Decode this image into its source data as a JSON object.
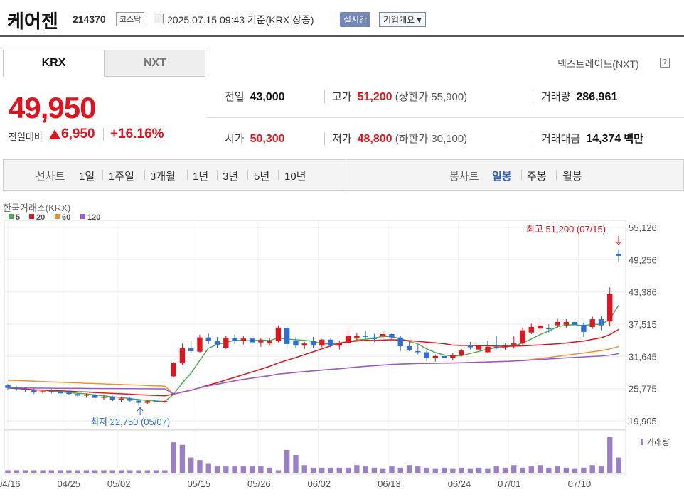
{
  "header": {
    "name": "케어젠",
    "code": "214370",
    "market": "코스닥",
    "time": "2025.07.15 09:43  기준(KRX 장중)",
    "live": "실시간",
    "corp": "기업개요 ▾"
  },
  "tabs": [
    "KRX",
    "NXT"
  ],
  "nexttrade": "넥스트레이드(NXT)",
  "price": {
    "current": "49,950",
    "change_label": "전일대비",
    "change": "6,950",
    "change_pct": "+16.16%"
  },
  "stats": {
    "prev_label": "전일",
    "prev": "43,000",
    "high_label": "고가",
    "high": "51,200",
    "upper_limit": "(상한가 55,900)",
    "volume_label": "거래량",
    "volume": "286,961",
    "open_label": "시가",
    "open": "50,300",
    "low_label": "저가",
    "low": "48,800",
    "lower_limit": "(하한가 30,100)",
    "amount_label": "거래대금",
    "amount": "14,374",
    "amount_unit": "백만"
  },
  "period": {
    "line_label": "선차트",
    "line_items": [
      "1일",
      "1주일",
      "3개월",
      "1년",
      "3년",
      "5년",
      "10년"
    ],
    "candle_label": "봉차트",
    "candle_items": [
      "일봉",
      "주봉",
      "월봉"
    ],
    "selected": "일봉"
  },
  "chart_data": {
    "type": "candlestick",
    "source": "한국거래소(KRX)",
    "legend": [
      {
        "name": "5",
        "color": "#4caf50"
      },
      {
        "name": "20",
        "color": "#e0141e"
      },
      {
        "name": "60",
        "color": "#f0922e"
      },
      {
        "name": "120",
        "color": "#9b59d0"
      }
    ],
    "y_ticks": [
      "55,126",
      "49,256",
      "43,386",
      "37,515",
      "31,645",
      "25,775",
      "19,905"
    ],
    "ylim": [
      19905,
      55126
    ],
    "x_ticks": [
      "04/16",
      "04/25",
      "05/02",
      "05/15",
      "05/26",
      "06/02",
      "06/13",
      "06/24",
      "07/01",
      "07/10"
    ],
    "high_annotation": "최고 51,200 (07/15)",
    "low_annotation": "최저 22,750 (05/07)",
    "volume_label": "거래량",
    "candles": [
      [
        26400,
        26600,
        25500,
        25900
      ],
      [
        25900,
        26200,
        25400,
        25700
      ],
      [
        25700,
        26000,
        25200,
        25500
      ],
      [
        25500,
        25800,
        24800,
        25100
      ],
      [
        25100,
        25600,
        24900,
        25300
      ],
      [
        25300,
        25700,
        24900,
        25100
      ],
      [
        25100,
        25500,
        24700,
        25000
      ],
      [
        25000,
        25300,
        24600,
        24800
      ],
      [
        24800,
        25000,
        24300,
        24500
      ],
      [
        24500,
        24900,
        24100,
        24700
      ],
      [
        24700,
        24900,
        23900,
        24100
      ],
      [
        24100,
        24500,
        23700,
        24300
      ],
      [
        24300,
        24500,
        23500,
        23800
      ],
      [
        23800,
        24300,
        23400,
        24000
      ],
      [
        24000,
        24200,
        23300,
        23600
      ],
      [
        23600,
        23900,
        22750,
        23200
      ],
      [
        23200,
        23700,
        23000,
        23500
      ],
      [
        23500,
        23800,
        23200,
        23400
      ],
      [
        23300,
        23600,
        23200,
        23500
      ],
      [
        28000,
        30600,
        27800,
        30400
      ],
      [
        30400,
        34000,
        30000,
        33100
      ],
      [
        33100,
        34400,
        32200,
        32600
      ],
      [
        32500,
        35600,
        32300,
        35100
      ],
      [
        35100,
        35800,
        33900,
        34500
      ],
      [
        34500,
        35200,
        33200,
        33800
      ],
      [
        33200,
        35400,
        33000,
        35000
      ],
      [
        35000,
        35600,
        33900,
        34500
      ],
      [
        34500,
        35400,
        33800,
        34900
      ],
      [
        34900,
        35300,
        33900,
        34200
      ],
      [
        34200,
        35000,
        33400,
        34600
      ],
      [
        34000,
        35000,
        33600,
        34400
      ],
      [
        34400,
        37300,
        34200,
        36900
      ],
      [
        36800,
        37000,
        33300,
        33900
      ],
      [
        34500,
        35200,
        33200,
        33600
      ],
      [
        33600,
        34300,
        33000,
        34000
      ],
      [
        34500,
        35200,
        33200,
        33600
      ],
      [
        33600,
        34800,
        33300,
        34700
      ],
      [
        34700,
        35100,
        33100,
        33600
      ],
      [
        33600,
        34500,
        32900,
        34100
      ],
      [
        34100,
        36800,
        33900,
        35400
      ],
      [
        34900,
        35900,
        34600,
        35400
      ],
      [
        35400,
        36300,
        34800,
        35200
      ],
      [
        35100,
        35800,
        34300,
        34800
      ],
      [
        35300,
        36200,
        34600,
        35700
      ],
      [
        35700,
        35900,
        34800,
        35100
      ],
      [
        35100,
        35400,
        32600,
        33500
      ],
      [
        33500,
        34500,
        32600,
        32800
      ],
      [
        32600,
        33600,
        32000,
        32400
      ],
      [
        32400,
        32700,
        30800,
        31300
      ],
      [
        31300,
        32000,
        30700,
        31700
      ],
      [
        31700,
        32200,
        30900,
        31300
      ],
      [
        31300,
        32300,
        30900,
        31900
      ],
      [
        31900,
        33000,
        31600,
        32700
      ],
      [
        33700,
        34300,
        32900,
        33300
      ],
      [
        32900,
        33900,
        32600,
        33600
      ],
      [
        32400,
        34500,
        32200,
        33400
      ],
      [
        33400,
        35400,
        33000,
        33100
      ],
      [
        33300,
        34100,
        32800,
        33600
      ],
      [
        33600,
        35300,
        33100,
        34000
      ],
      [
        34000,
        36900,
        33700,
        36400
      ],
      [
        36000,
        37600,
        35700,
        37000
      ],
      [
        36700,
        38000,
        35800,
        37200
      ],
      [
        36800,
        37500,
        36000,
        36700
      ],
      [
        37300,
        38500,
        36800,
        37900
      ],
      [
        37400,
        38400,
        36900,
        37900
      ],
      [
        37900,
        38400,
        37100,
        37400
      ],
      [
        37400,
        37800,
        35200,
        36100
      ],
      [
        37000,
        38900,
        36600,
        38400
      ],
      [
        38400,
        39000,
        36400,
        37300
      ],
      [
        38000,
        44200,
        37100,
        43000
      ],
      [
        50300,
        51200,
        48800,
        49950
      ]
    ],
    "volumes": [
      2,
      2,
      2,
      2,
      2,
      2,
      2,
      2,
      2,
      2,
      2,
      2,
      2,
      2,
      2,
      2,
      2,
      2,
      2,
      24,
      22,
      12,
      10,
      7,
      5,
      5,
      5,
      5,
      5,
      5,
      4,
      2,
      18,
      14,
      6,
      4,
      4,
      4,
      4,
      4,
      6,
      5,
      4,
      3,
      5,
      4,
      6,
      5,
      4,
      3,
      4,
      3,
      4,
      3,
      4,
      3,
      5,
      4,
      6,
      4,
      5,
      6,
      4,
      5,
      4,
      3,
      4,
      6,
      5,
      28,
      12
    ]
  }
}
